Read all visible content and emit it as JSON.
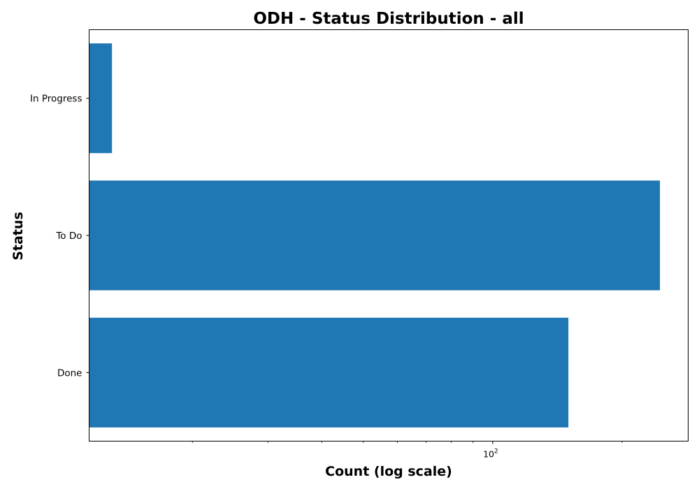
{
  "chart_data": {
    "type": "bar",
    "orientation": "horizontal",
    "title": "ODH - Status Distribution - all",
    "xlabel": "Count (log scale)",
    "ylabel": "Status",
    "x_scale": "log",
    "x_tick_base": "10",
    "x_tick_exponent": "2",
    "xlim": [
      11.5,
      285
    ],
    "categories": [
      "Done",
      "To Do",
      "In Progress"
    ],
    "values": [
      150,
      245,
      13
    ],
    "bar_color": "#1f77b4",
    "grid": false,
    "legend": "none"
  }
}
